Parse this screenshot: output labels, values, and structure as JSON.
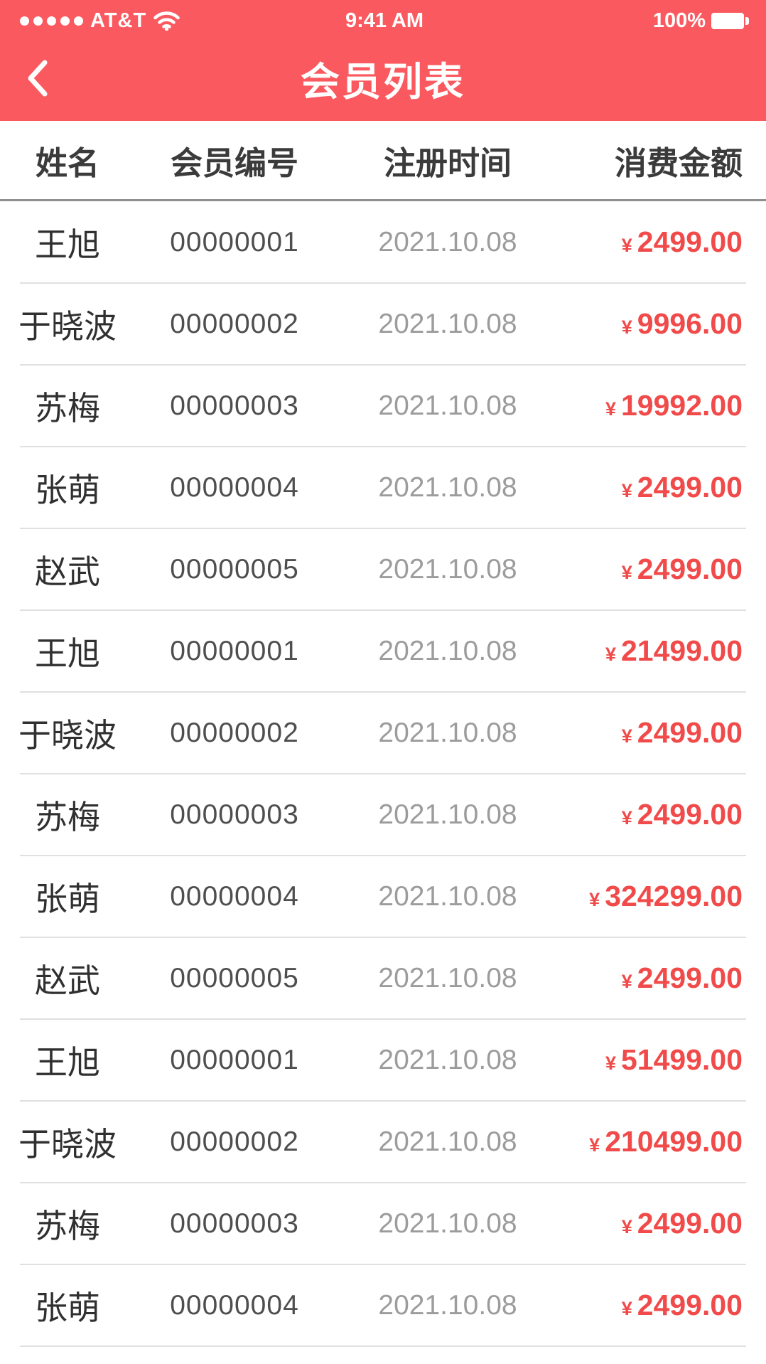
{
  "status_bar": {
    "carrier": "AT&T",
    "time": "9:41 AM",
    "battery_percent": "100%",
    "signal_dots": 5
  },
  "nav": {
    "title": "会员列表"
  },
  "icons": {
    "back": "chevron-left",
    "wifi": "wifi",
    "battery": "battery-full",
    "signal": "signal-dots"
  },
  "colors": {
    "header_red": "#fa5a5f",
    "amount_red": "#f04b4a",
    "header_rule": "#8f8f8f",
    "row_divider": "#e0e0e0"
  },
  "table": {
    "columns": [
      "姓名",
      "会员编号",
      "注册时间",
      "消费金额"
    ],
    "currency": "¥",
    "rows": [
      {
        "name": "王旭",
        "id": "00000001",
        "date": "2021.10.08",
        "amount": "2499.00"
      },
      {
        "name": "于晓波",
        "id": "00000002",
        "date": "2021.10.08",
        "amount": "9996.00"
      },
      {
        "name": "苏梅",
        "id": "00000003",
        "date": "2021.10.08",
        "amount": "19992.00"
      },
      {
        "name": "张萌",
        "id": "00000004",
        "date": "2021.10.08",
        "amount": "2499.00"
      },
      {
        "name": "赵武",
        "id": "00000005",
        "date": "2021.10.08",
        "amount": "2499.00"
      },
      {
        "name": "王旭",
        "id": "00000001",
        "date": "2021.10.08",
        "amount": "21499.00"
      },
      {
        "name": "于晓波",
        "id": "00000002",
        "date": "2021.10.08",
        "amount": "2499.00"
      },
      {
        "name": "苏梅",
        "id": "00000003",
        "date": "2021.10.08",
        "amount": "2499.00"
      },
      {
        "name": "张萌",
        "id": "00000004",
        "date": "2021.10.08",
        "amount": "324299.00"
      },
      {
        "name": "赵武",
        "id": "00000005",
        "date": "2021.10.08",
        "amount": "2499.00"
      },
      {
        "name": "王旭",
        "id": "00000001",
        "date": "2021.10.08",
        "amount": "51499.00"
      },
      {
        "name": "于晓波",
        "id": "00000002",
        "date": "2021.10.08",
        "amount": "210499.00"
      },
      {
        "name": "苏梅",
        "id": "00000003",
        "date": "2021.10.08",
        "amount": "2499.00"
      },
      {
        "name": "张萌",
        "id": "00000004",
        "date": "2021.10.08",
        "amount": "2499.00"
      }
    ]
  }
}
